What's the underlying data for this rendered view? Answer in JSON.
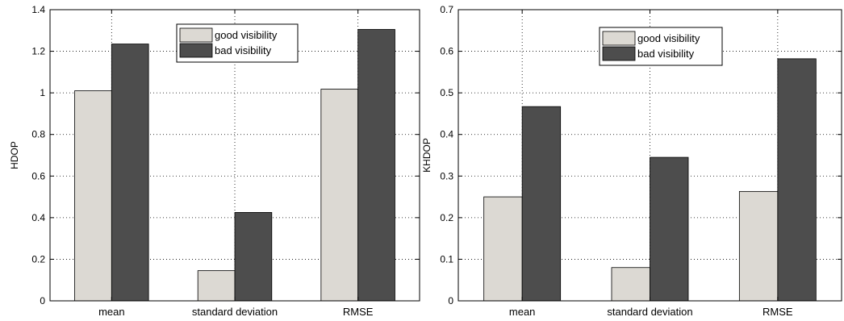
{
  "chart_data": [
    {
      "type": "bar",
      "categories": [
        "mean",
        "standard deviation",
        "RMSE"
      ],
      "xlabel": "",
      "ylabel": "HDOP",
      "ylim": [
        0,
        1.4
      ],
      "yticks": [
        "0",
        "0.2",
        "0.4",
        "0.6",
        "0.8",
        "1",
        "1.2",
        "1.4"
      ],
      "grid": true,
      "legend_position": "top-center",
      "series": [
        {
          "name": "good visibility",
          "color": "#dcd9d3",
          "values": [
            1.01,
            0.145,
            1.018
          ]
        },
        {
          "name": "bad visibility",
          "color": "#4d4d4d",
          "values": [
            1.235,
            0.425,
            1.305
          ]
        }
      ]
    },
    {
      "type": "bar",
      "categories": [
        "mean",
        "standard deviation",
        "RMSE"
      ],
      "xlabel": "",
      "ylabel": "KHDOP",
      "ylim": [
        0,
        0.7
      ],
      "yticks": [
        "0",
        "0.1",
        "0.2",
        "0.3",
        "0.4",
        "0.5",
        "0.6",
        "0.7"
      ],
      "grid": true,
      "legend_position": "top-center",
      "series": [
        {
          "name": "good visibility",
          "color": "#dcd9d3",
          "values": [
            0.25,
            0.08,
            0.263
          ]
        },
        {
          "name": "bad visibility",
          "color": "#4d4d4d",
          "values": [
            0.467,
            0.345,
            0.582
          ]
        }
      ]
    }
  ]
}
